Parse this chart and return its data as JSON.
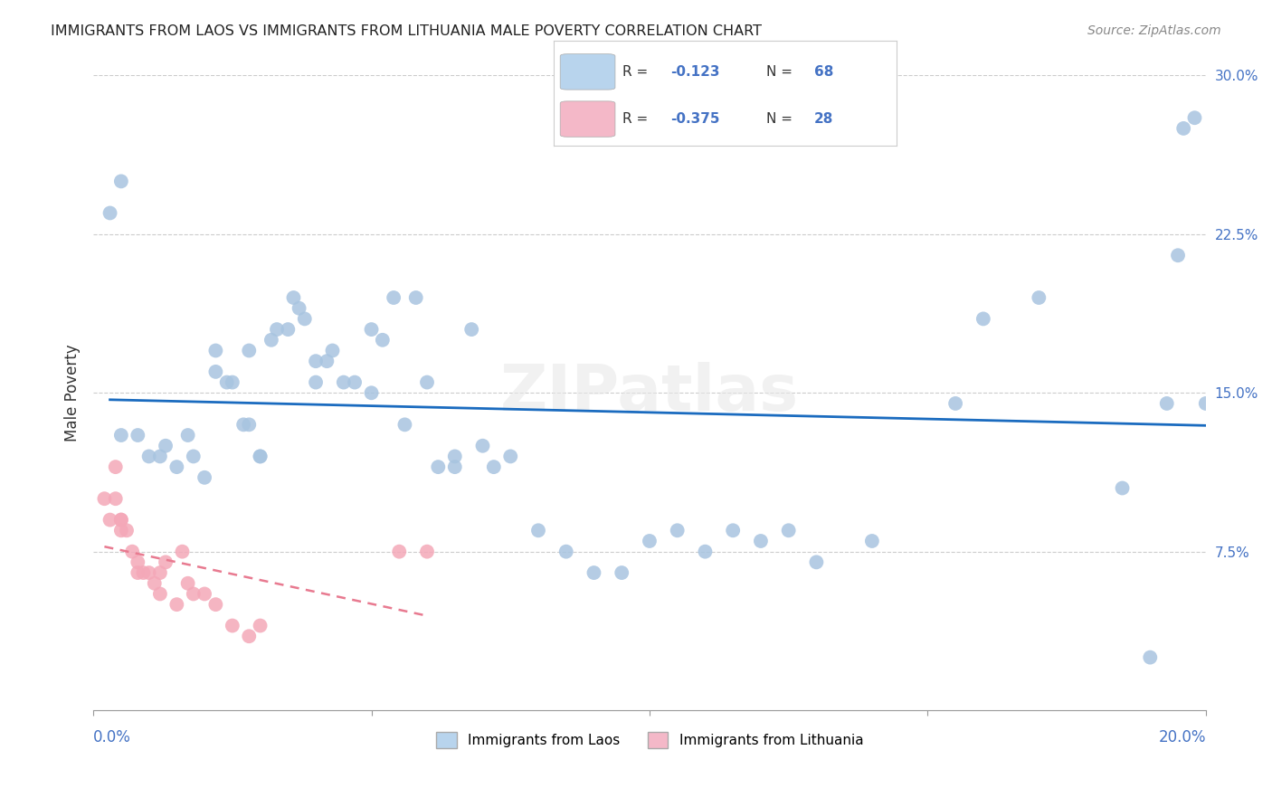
{
  "title": "IMMIGRANTS FROM LAOS VS IMMIGRANTS FROM LITHUANIA MALE POVERTY CORRELATION CHART",
  "source": "Source: ZipAtlas.com",
  "ylabel": "Male Poverty",
  "xlim": [
    0.0,
    0.2
  ],
  "ylim": [
    0.0,
    0.3
  ],
  "yticks": [
    0.075,
    0.15,
    0.225,
    0.3
  ],
  "ytick_labels": [
    "7.5%",
    "15.0%",
    "22.5%",
    "30.0%"
  ],
  "background_color": "#ffffff",
  "watermark": "ZIPatlas",
  "color_laos": "#a8c4e0",
  "color_lithuania": "#f4a8b8",
  "line_color_laos": "#1a6bbf",
  "line_color_lithuania": "#e87a90",
  "legend_fill_laos": "#b8d4ed",
  "legend_fill_lithuania": "#f4b8c8",
  "laos_x": [
    0.005,
    0.008,
    0.01,
    0.012,
    0.013,
    0.015,
    0.017,
    0.018,
    0.02,
    0.022,
    0.022,
    0.024,
    0.025,
    0.027,
    0.028,
    0.028,
    0.03,
    0.03,
    0.032,
    0.033,
    0.035,
    0.036,
    0.037,
    0.038,
    0.04,
    0.04,
    0.042,
    0.043,
    0.045,
    0.047,
    0.05,
    0.05,
    0.052,
    0.054,
    0.056,
    0.058,
    0.06,
    0.062,
    0.065,
    0.065,
    0.068,
    0.07,
    0.072,
    0.075,
    0.08,
    0.085,
    0.09,
    0.095,
    0.1,
    0.105,
    0.11,
    0.115,
    0.12,
    0.125,
    0.13,
    0.14,
    0.155,
    0.16,
    0.17,
    0.185,
    0.19,
    0.193,
    0.195,
    0.196,
    0.198,
    0.2,
    0.005,
    0.003
  ],
  "laos_y": [
    0.13,
    0.13,
    0.12,
    0.12,
    0.125,
    0.115,
    0.13,
    0.12,
    0.11,
    0.17,
    0.16,
    0.155,
    0.155,
    0.135,
    0.135,
    0.17,
    0.12,
    0.12,
    0.175,
    0.18,
    0.18,
    0.195,
    0.19,
    0.185,
    0.155,
    0.165,
    0.165,
    0.17,
    0.155,
    0.155,
    0.18,
    0.15,
    0.175,
    0.195,
    0.135,
    0.195,
    0.155,
    0.115,
    0.12,
    0.115,
    0.18,
    0.125,
    0.115,
    0.12,
    0.085,
    0.075,
    0.065,
    0.065,
    0.08,
    0.085,
    0.075,
    0.085,
    0.08,
    0.085,
    0.07,
    0.08,
    0.145,
    0.185,
    0.195,
    0.105,
    0.025,
    0.145,
    0.215,
    0.275,
    0.28,
    0.145,
    0.25,
    0.235
  ],
  "lithuania_x": [
    0.002,
    0.003,
    0.004,
    0.004,
    0.005,
    0.005,
    0.005,
    0.006,
    0.007,
    0.008,
    0.008,
    0.009,
    0.01,
    0.011,
    0.012,
    0.012,
    0.013,
    0.015,
    0.016,
    0.017,
    0.018,
    0.02,
    0.022,
    0.025,
    0.028,
    0.03,
    0.055,
    0.06
  ],
  "lithuania_y": [
    0.1,
    0.09,
    0.115,
    0.1,
    0.09,
    0.085,
    0.09,
    0.085,
    0.075,
    0.07,
    0.065,
    0.065,
    0.065,
    0.06,
    0.065,
    0.055,
    0.07,
    0.05,
    0.075,
    0.06,
    0.055,
    0.055,
    0.05,
    0.04,
    0.035,
    0.04,
    0.075,
    0.075
  ]
}
